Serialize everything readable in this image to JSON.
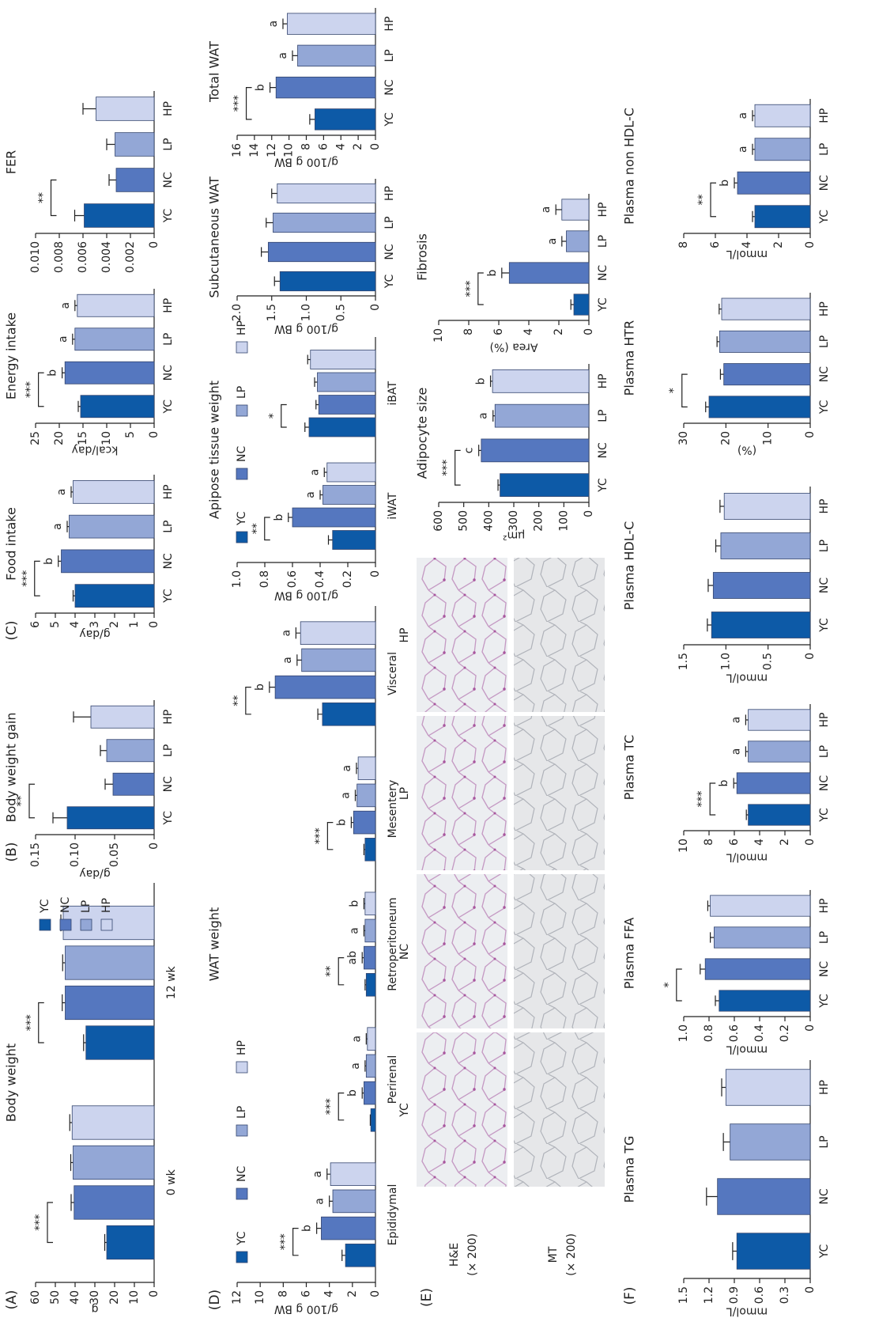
{
  "chart_data": [
    {
      "type": "bar",
      "label": "(A)",
      "title": "Body weight",
      "ylabel": "g",
      "categories": [
        "0 wk",
        "12 wk"
      ],
      "series": [
        {
          "name": "YC",
          "color": "#0d5aa7",
          "values": [
            24,
            34.5
          ],
          "errors": [
            1,
            1.2
          ]
        },
        {
          "name": "NC",
          "color": "#5577bf",
          "values": [
            40.5,
            45
          ],
          "errors": [
            1.5,
            1.5
          ]
        },
        {
          "name": "LP",
          "color": "#93a7d6",
          "values": [
            41,
            45
          ],
          "errors": [
            1.2,
            1.3
          ]
        },
        {
          "name": "HP",
          "color": "#ccd4ee",
          "values": [
            41.5,
            46
          ],
          "errors": [
            1.2,
            1.2
          ]
        }
      ],
      "significance": [
        "***",
        "***"
      ],
      "legend": "right",
      "ylim": [
        0,
        60
      ],
      "yticks": [
        0,
        10,
        20,
        30,
        40,
        50,
        60
      ]
    },
    {
      "type": "bar",
      "label": "(B)",
      "title": "Body weight gain",
      "ylabel": "g/day",
      "categories": [
        "YC",
        "NC",
        "LP",
        "HP"
      ],
      "colors": [
        "#0d5aa7",
        "#5577bf",
        "#93a7d6",
        "#ccd4ee"
      ],
      "values": [
        0.11,
        0.052,
        0.06,
        0.08
      ],
      "errors": [
        0.018,
        0.01,
        0.008,
        0.022
      ],
      "significance": "**",
      "ylim": [
        0,
        0.15
      ],
      "yticks": [
        0,
        0.05,
        {
          "value": 0.1,
          "label": "0.10"
        },
        0.15
      ]
    },
    {
      "type": "bar",
      "label": "(C)",
      "title": "Food intake",
      "ylabel": "g/day",
      "categories": [
        "YC",
        "NC",
        "LP",
        "HP"
      ],
      "colors": [
        "#0d5aa7",
        "#5577bf",
        "#93a7d6",
        "#ccd4ee"
      ],
      "values": [
        4.0,
        4.7,
        4.3,
        4.1
      ],
      "errors": [
        0.1,
        0.15,
        0.1,
        0.1
      ],
      "letters": [
        null,
        "b",
        "a",
        "a"
      ],
      "significance": "***",
      "ylim": [
        0,
        6
      ],
      "yticks": [
        0,
        1,
        2,
        3,
        4,
        5,
        6
      ]
    },
    {
      "type": "bar",
      "title": "Energy intake",
      "ylabel": "kcal/day",
      "categories": [
        "YC",
        "NC",
        "LP",
        "HP"
      ],
      "colors": [
        "#0d5aa7",
        "#5577bf",
        "#93a7d6",
        "#ccd4ee"
      ],
      "values": [
        15.5,
        18.8,
        16.7,
        16.2
      ],
      "errors": [
        0.5,
        0.6,
        0.5,
        0.5
      ],
      "letters": [
        null,
        "b",
        "a",
        "a"
      ],
      "significance": "***",
      "ylim": [
        0,
        25
      ],
      "yticks": [
        0,
        5,
        10,
        15,
        20,
        25
      ]
    },
    {
      "type": "bar",
      "title": "FER",
      "categories": [
        "YC",
        "NC",
        "LP",
        "HP"
      ],
      "colors": [
        "#0d5aa7",
        "#5577bf",
        "#93a7d6",
        "#ccd4ee"
      ],
      "values": [
        0.0059,
        0.0032,
        0.0033,
        0.0049
      ],
      "errors": [
        0.0008,
        0.0006,
        0.0007,
        0.0011
      ],
      "significance": "**",
      "ylim": [
        0,
        0.01
      ],
      "yticks": [
        0,
        0.002,
        0.004,
        0.006,
        0.008,
        {
          "value": 0.01,
          "label": "0.010"
        }
      ]
    },
    {
      "type": "bar",
      "label": "(D)",
      "title": "WAT weight",
      "ylabel": "g/100 g BW",
      "categories": [
        "Epididymal",
        "Perirenal",
        "Retroperitoneum",
        "Mesentery",
        "Visceral"
      ],
      "series": [
        {
          "name": "YC",
          "color": "#0d5aa7",
          "values": [
            2.6,
            0.4,
            0.8,
            0.9,
            4.6
          ],
          "errors": [
            0.3,
            0.05,
            0.1,
            0.1,
            0.4
          ]
        },
        {
          "name": "NC",
          "color": "#5577bf",
          "values": [
            4.7,
            1.0,
            1.0,
            1.9,
            8.7
          ],
          "errors": [
            0.4,
            0.15,
            0.15,
            0.2,
            0.5
          ],
          "letters": [
            "b",
            "b",
            "ab",
            "b",
            "b"
          ]
        },
        {
          "name": "LP",
          "color": "#93a7d6",
          "values": [
            3.7,
            0.8,
            0.9,
            1.6,
            6.4
          ],
          "errors": [
            0.3,
            0.1,
            0.1,
            0.15,
            0.4
          ],
          "letters": [
            "a",
            "a",
            "a",
            "a",
            "a"
          ]
        },
        {
          "name": "HP",
          "color": "#ccd4ee",
          "values": [
            3.9,
            0.7,
            0.9,
            1.5,
            6.5
          ],
          "errors": [
            0.3,
            0.1,
            0.1,
            0.15,
            0.4
          ],
          "letters": [
            "a",
            "a",
            "b",
            "a",
            "a"
          ]
        }
      ],
      "significance": [
        "***",
        "***",
        "**",
        "***",
        "**"
      ],
      "legend": "top",
      "ylim": [
        0,
        12
      ],
      "yticks": [
        0,
        2,
        4,
        6,
        8,
        10,
        12
      ]
    },
    {
      "type": "bar",
      "title": "Apipose tissue weight",
      "ylabel": "g/100 g BW",
      "categories": [
        "iWAT",
        "iBAT"
      ],
      "series": [
        {
          "name": "YC",
          "color": "#0d5aa7",
          "values": [
            0.31,
            0.48
          ],
          "errors": [
            0.03,
            0.03
          ]
        },
        {
          "name": "NC",
          "color": "#5577bf",
          "values": [
            0.6,
            0.41
          ],
          "errors": [
            0.03,
            0.02
          ],
          "letters": [
            "b",
            null
          ]
        },
        {
          "name": "LP",
          "color": "#93a7d6",
          "values": [
            0.38,
            0.42
          ],
          "errors": [
            0.02,
            0.02
          ],
          "letters": [
            "a",
            null
          ]
        },
        {
          "name": "HP",
          "color": "#ccd4ee",
          "values": [
            0.35,
            0.47
          ],
          "errors": [
            0.02,
            0.02
          ],
          "letters": [
            "a",
            null
          ]
        }
      ],
      "significance": [
        "**",
        "*"
      ],
      "legend": "top",
      "ylim": [
        0,
        1
      ],
      "yticks": [
        0,
        0.2,
        0.4,
        0.6,
        0.8,
        {
          "value": 1,
          "label": "1.0"
        }
      ]
    },
    {
      "type": "bar",
      "title": "Subcutaneous WAT",
      "ylabel": "g/100 g BW",
      "categories": [
        "YC",
        "NC",
        "LP",
        "HP"
      ],
      "colors": [
        "#0d5aa7",
        "#5577bf",
        "#93a7d6",
        "#ccd4ee"
      ],
      "values": [
        1.38,
        1.55,
        1.48,
        1.42
      ],
      "errors": [
        0.08,
        0.1,
        0.1,
        0.08
      ],
      "ylim": [
        0,
        2
      ],
      "yticks": [
        0,
        0.5,
        {
          "value": 1,
          "label": "1.0"
        },
        1.5,
        {
          "value": 2,
          "label": "2.0"
        }
      ]
    },
    {
      "type": "bar",
      "title": "Total WAT",
      "ylabel": "g/100 g BW",
      "categories": [
        "YC",
        "NC",
        "LP",
        "HP"
      ],
      "colors": [
        "#0d5aa7",
        "#5577bf",
        "#93a7d6",
        "#ccd4ee"
      ],
      "values": [
        7.0,
        11.5,
        9.0,
        10.2
      ],
      "errors": [
        0.6,
        0.7,
        0.6,
        0.5
      ],
      "letters": [
        null,
        "b",
        "a",
        "a"
      ],
      "significance": "***",
      "ylim": [
        0,
        16
      ],
      "yticks": [
        0,
        2,
        4,
        6,
        8,
        10,
        12,
        14,
        16
      ]
    },
    {
      "type": "bar",
      "title": "Adipocyte size",
      "ylabel": "μm²",
      "categories": [
        "YC",
        "NC",
        "LP",
        "HP"
      ],
      "colors": [
        "#0d5aa7",
        "#5577bf",
        "#93a7d6",
        "#ccd4ee"
      ],
      "values": [
        355,
        430,
        375,
        385
      ],
      "errors": [
        8,
        10,
        8,
        8
      ],
      "letters": [
        null,
        "c",
        "a",
        "b"
      ],
      "significance": "***",
      "ylim": [
        0,
        600
      ],
      "yticks": [
        0,
        100,
        200,
        300,
        400,
        500,
        600
      ]
    },
    {
      "type": "bar",
      "title": "Fibrosis",
      "ylabel": "Area (%)",
      "categories": [
        "YC",
        "NC",
        "LP",
        "HP"
      ],
      "colors": [
        "#0d5aa7",
        "#5577bf",
        "#93a7d6",
        "#ccd4ee"
      ],
      "values": [
        1.0,
        5.3,
        1.5,
        1.8
      ],
      "errors": [
        0.2,
        0.5,
        0.3,
        0.4
      ],
      "letters": [
        null,
        "b",
        "a",
        "a"
      ],
      "significance": "***",
      "ylim": [
        0,
        10
      ],
      "yticks": [
        0,
        2,
        4,
        6,
        8,
        10
      ]
    },
    {
      "type": "bar",
      "label": "(F)",
      "title": "Plasma TG",
      "ylabel": "mmol/L",
      "categories": [
        "YC",
        "NC",
        "LP",
        "HP"
      ],
      "colors": [
        "#0d5aa7",
        "#5577bf",
        "#93a7d6",
        "#ccd4ee"
      ],
      "values": [
        0.87,
        1.1,
        0.95,
        1.0
      ],
      "errors": [
        0.05,
        0.13,
        0.08,
        0.05
      ],
      "ylim": [
        0,
        1.5
      ],
      "yticks": [
        0,
        0.3,
        0.6,
        0.9,
        1.2,
        1.5
      ]
    },
    {
      "type": "bar",
      "title": "Plasma FFA",
      "ylabel": "mmol/L",
      "categories": [
        "YC",
        "NC",
        "LP",
        "HP"
      ],
      "colors": [
        "#0d5aa7",
        "#5577bf",
        "#93a7d6",
        "#ccd4ee"
      ],
      "values": [
        0.72,
        0.83,
        0.76,
        0.79
      ],
      "errors": [
        0.03,
        0.04,
        0.03,
        0.02
      ],
      "significance": "*",
      "ylim": [
        0,
        1
      ],
      "yticks": [
        0,
        0.2,
        0.4,
        0.6,
        0.8,
        {
          "value": 1,
          "label": "1.0"
        }
      ]
    },
    {
      "type": "bar",
      "title": "Plasma TC",
      "ylabel": "mmol/L",
      "categories": [
        "YC",
        "NC",
        "LP",
        "HP"
      ],
      "colors": [
        "#0d5aa7",
        "#5577bf",
        "#93a7d6",
        "#ccd4ee"
      ],
      "values": [
        4.9,
        5.8,
        4.9,
        4.9
      ],
      "errors": [
        0.15,
        0.25,
        0.2,
        0.2
      ],
      "letters": [
        null,
        "b",
        "a",
        "a"
      ],
      "significance": "***",
      "ylim": [
        0,
        10
      ],
      "yticks": [
        0,
        2,
        4,
        6,
        8,
        10
      ]
    },
    {
      "type": "bar",
      "title": "Plasma HDL-C",
      "ylabel": "mmol/L",
      "categories": [
        "YC",
        "NC",
        "LP",
        "HP"
      ],
      "colors": [
        "#0d5aa7",
        "#5577bf",
        "#93a7d6",
        "#ccd4ee"
      ],
      "values": [
        1.17,
        1.15,
        1.06,
        1.02
      ],
      "errors": [
        0.05,
        0.06,
        0.06,
        0.05
      ],
      "ylim": [
        0,
        1.5
      ],
      "yticks": [
        0,
        0.5,
        {
          "value": 1,
          "label": "1.0"
        },
        1.5
      ]
    },
    {
      "type": "bar",
      "title": "Plasma HTR",
      "ylabel": "(%)",
      "categories": [
        "YC",
        "NC",
        "LP",
        "HP"
      ],
      "colors": [
        "#0d5aa7",
        "#5577bf",
        "#93a7d6",
        "#ccd4ee"
      ],
      "values": [
        24,
        20.5,
        21.5,
        21
      ],
      "errors": [
        0.8,
        0.8,
        0.6,
        0.6
      ],
      "significance": "*",
      "ylim": [
        0,
        30
      ],
      "yticks": [
        0,
        10,
        20,
        30
      ]
    },
    {
      "type": "bar",
      "title": "Plasma non HDL-C",
      "ylabel": "mmol/L",
      "categories": [
        "YC",
        "NC",
        "LP",
        "HP"
      ],
      "colors": [
        "#0d5aa7",
        "#5577bf",
        "#93a7d6",
        "#ccd4ee"
      ],
      "values": [
        3.5,
        4.6,
        3.5,
        3.5
      ],
      "errors": [
        0.15,
        0.2,
        0.15,
        0.15
      ],
      "letters": [
        null,
        "b",
        "a",
        "a"
      ],
      "significance": "**",
      "ylim": [
        0,
        8
      ],
      "yticks": [
        0,
        2,
        4,
        6,
        8
      ]
    }
  ],
  "histology": {
    "label": "(E)",
    "columns": [
      "YC",
      "NC",
      "LP",
      "HP"
    ],
    "rows": [
      {
        "name": "H&E",
        "magnification": "(× 200)"
      },
      {
        "name": "MT",
        "magnification": "(× 200)"
      }
    ]
  }
}
